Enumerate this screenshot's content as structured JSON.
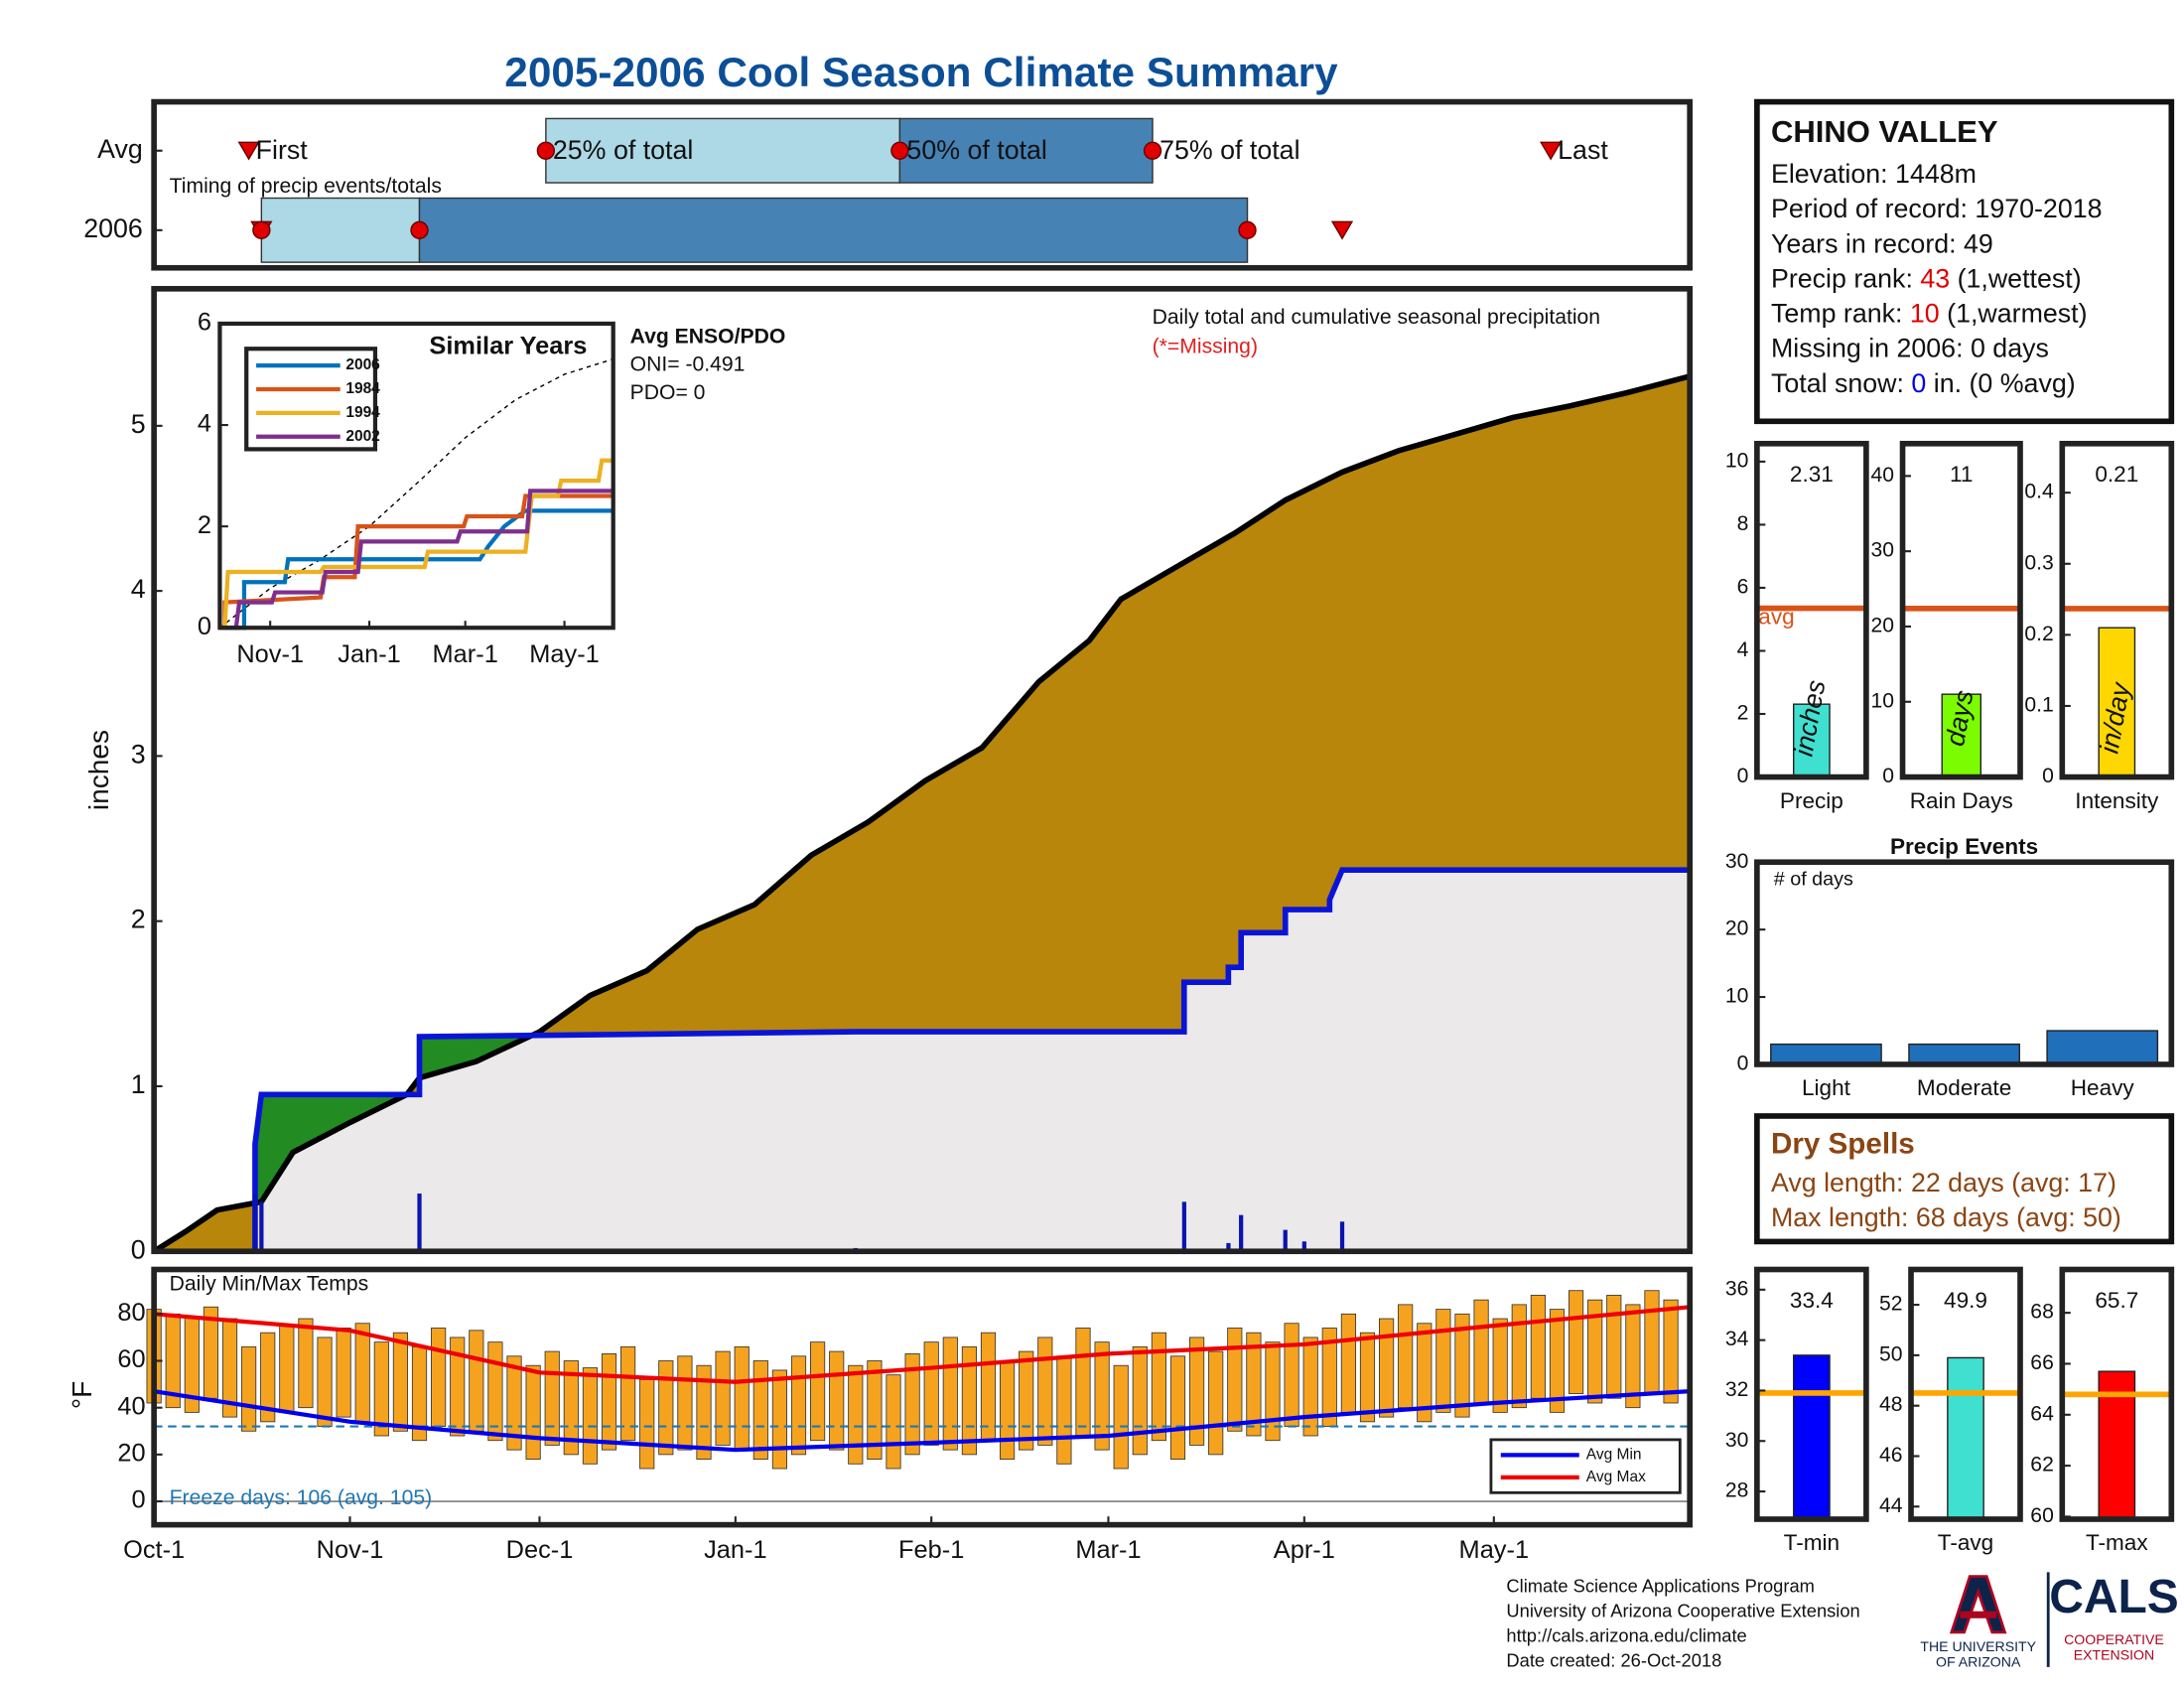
{
  "title": "2005-2006 Cool Season Climate Summary",
  "chart_data": [
    {
      "type": "timeline",
      "annotation": "Timing of precip events/totals",
      "categories": [
        "Avg",
        "2006"
      ],
      "labels": [
        "First",
        "25% of total",
        "50% of total",
        "75% of total",
        "Last"
      ],
      "first": [
        15,
        17
      ],
      "q25": [
        62,
        17
      ],
      "q50": [
        118,
        42
      ],
      "q75": [
        158,
        173
      ],
      "last": [
        221,
        188
      ],
      "xlim": [
        0,
        243
      ],
      "colors": {
        "early": "#add8e6",
        "late": "#4682b4",
        "marker": "#e00000"
      }
    },
    {
      "type": "area",
      "ylabel": "inches",
      "annotation": "Daily total and cumulative seasonal precipitation",
      "note": "(*=Missing)",
      "note_color": "#e02020",
      "xlim": [
        0,
        243
      ],
      "ylim": [
        0,
        5.83
      ],
      "yticks": [
        0,
        1,
        2,
        3,
        4,
        5
      ],
      "average": {
        "color": "#000000",
        "x": [
          0,
          5,
          10,
          17,
          22,
          31,
          40,
          42,
          51,
          61,
          69,
          78,
          86,
          95,
          104,
          113,
          122,
          131,
          140,
          148,
          153,
          162,
          171,
          179,
          188,
          197,
          206,
          215,
          224,
          233,
          243
        ],
        "values": [
          0,
          0.12,
          0.25,
          0.3,
          0.6,
          0.78,
          0.95,
          1.05,
          1.15,
          1.33,
          1.55,
          1.7,
          1.95,
          2.1,
          2.4,
          2.6,
          2.85,
          3.05,
          3.45,
          3.7,
          3.95,
          4.15,
          4.35,
          4.55,
          4.72,
          4.85,
          4.95,
          5.05,
          5.12,
          5.2,
          5.3
        ]
      },
      "observed": {
        "color": "#0a14d8",
        "x": [
          0,
          16,
          16,
          17,
          42,
          42,
          111,
          163,
          163,
          170,
          170,
          172,
          172,
          179,
          179,
          186,
          186,
          188,
          243
        ],
        "values": [
          0,
          0,
          0.65,
          0.95,
          0.95,
          1.3,
          1.33,
          1.33,
          1.63,
          1.63,
          1.72,
          1.72,
          1.93,
          1.93,
          2.07,
          2.07,
          2.13,
          2.31,
          2.31
        ]
      },
      "daily": {
        "color": "#0a14b0",
        "x": [
          16,
          17,
          42,
          111,
          163,
          170,
          172,
          179,
          182,
          188
        ],
        "values": [
          0.35,
          0.3,
          0.35,
          0.02,
          0.3,
          0.05,
          0.22,
          0.13,
          0.06,
          0.18
        ]
      },
      "fills": {
        "below": "#ebe9e9",
        "deficit": "#b8860b",
        "surplus": "#228b22"
      }
    },
    {
      "type": "line",
      "title": "Similar Years",
      "annotations": [
        "Avg ENSO/PDO",
        "ONI= -0.491",
        "PDO= 0"
      ],
      "xlim": [
        0,
        242
      ],
      "ylim": [
        0,
        6
      ],
      "yticks": [
        0,
        2,
        4,
        6
      ],
      "xticks": [
        {
          "value": 31,
          "label": "Nov-1"
        },
        {
          "value": 92,
          "label": "Jan-1"
        },
        {
          "value": 151,
          "label": "Mar-1"
        },
        {
          "value": 212,
          "label": "May-1"
        }
      ],
      "series": [
        {
          "name": "2006",
          "color": "#0072bd",
          "x": [
            0,
            15,
            15,
            40,
            42,
            160,
            165,
            175,
            188,
            242
          ],
          "values": [
            0,
            0,
            0.9,
            0.9,
            1.35,
            1.35,
            1.6,
            2.0,
            2.31,
            2.31
          ]
        },
        {
          "name": "1984",
          "color": "#d95319",
          "x": [
            0,
            3,
            3,
            62,
            64,
            83,
            85,
            150,
            152,
            186,
            188,
            242
          ],
          "values": [
            0,
            0,
            0.5,
            0.6,
            1.0,
            1.0,
            2.0,
            2.0,
            2.2,
            2.2,
            2.6,
            2.6
          ]
        },
        {
          "name": "1994",
          "color": "#edb120",
          "x": [
            0,
            3,
            5,
            62,
            64,
            126,
            128,
            188,
            192,
            208,
            210,
            233,
            235,
            242
          ],
          "values": [
            0,
            0,
            1.1,
            1.1,
            1.2,
            1.2,
            1.5,
            1.5,
            2.6,
            2.6,
            2.9,
            2.9,
            3.3,
            3.3
          ]
        },
        {
          "name": "2002",
          "color": "#7e2f8e",
          "x": [
            0,
            10,
            12,
            32,
            34,
            63,
            65,
            85,
            87,
            146,
            148,
            189,
            191,
            242
          ],
          "values": [
            0,
            0,
            0.5,
            0.5,
            0.7,
            0.7,
            1.1,
            1.1,
            1.7,
            1.7,
            1.9,
            1.9,
            2.7,
            2.7
          ]
        }
      ],
      "average": {
        "color": "#000000",
        "dashed": true,
        "x": [
          0,
          31,
          61,
          92,
          123,
          151,
          182,
          212,
          242
        ],
        "values": [
          0,
          0.78,
          1.33,
          2.0,
          2.9,
          3.75,
          4.5,
          5.0,
          5.3
        ]
      }
    },
    {
      "type": "range_bar",
      "title": "Daily Min/Max Temps",
      "ylabel": "°F",
      "xlim": [
        0,
        243
      ],
      "ylim": [
        -10,
        99
      ],
      "yticks": [
        0,
        20,
        40,
        60,
        80
      ],
      "xticks": [
        {
          "value": 0,
          "label": "Oct-1"
        },
        {
          "value": 31,
          "label": "Nov-1"
        },
        {
          "value": 61,
          "label": "Dec-1"
        },
        {
          "value": 92,
          "label": "Jan-1"
        },
        {
          "value": 123,
          "label": "Feb-1"
        },
        {
          "value": 151,
          "label": "Mar-1"
        },
        {
          "value": 182,
          "label": "Apr-1"
        },
        {
          "value": 212,
          "label": "May-1"
        }
      ],
      "bar_color": "#f5a31f",
      "x": [
        0,
        3,
        6,
        9,
        12,
        15,
        18,
        21,
        24,
        27,
        30,
        33,
        36,
        39,
        42,
        45,
        48,
        51,
        54,
        57,
        60,
        63,
        66,
        69,
        72,
        75,
        78,
        81,
        84,
        87,
        90,
        93,
        96,
        99,
        102,
        105,
        108,
        111,
        114,
        117,
        120,
        123,
        126,
        129,
        132,
        135,
        138,
        141,
        144,
        147,
        150,
        153,
        156,
        159,
        162,
        165,
        168,
        171,
        174,
        177,
        180,
        183,
        186,
        189,
        192,
        195,
        198,
        201,
        204,
        207,
        210,
        213,
        216,
        219,
        222,
        225,
        228,
        231,
        234,
        237,
        240
      ],
      "max": [
        82,
        80,
        79,
        83,
        78,
        66,
        72,
        75,
        78,
        70,
        74,
        76,
        68,
        72,
        66,
        74,
        70,
        73,
        68,
        62,
        58,
        64,
        60,
        57,
        63,
        66,
        52,
        60,
        62,
        58,
        64,
        66,
        60,
        56,
        62,
        68,
        64,
        58,
        60,
        54,
        63,
        68,
        70,
        66,
        72,
        60,
        64,
        70,
        62,
        74,
        68,
        58,
        66,
        72,
        62,
        70,
        64,
        74,
        72,
        68,
        76,
        70,
        74,
        80,
        72,
        78,
        84,
        76,
        82,
        80,
        86,
        78,
        84,
        88,
        82,
        90,
        86,
        88,
        84,
        90,
        86
      ],
      "min": [
        42,
        40,
        38,
        44,
        36,
        30,
        34,
        38,
        40,
        32,
        36,
        34,
        28,
        30,
        26,
        32,
        28,
        30,
        26,
        22,
        18,
        24,
        20,
        16,
        22,
        26,
        14,
        20,
        22,
        18,
        24,
        22,
        18,
        14,
        20,
        26,
        22,
        16,
        18,
        14,
        20,
        24,
        22,
        20,
        26,
        18,
        22,
        24,
        16,
        28,
        22,
        14,
        20,
        26,
        18,
        24,
        20,
        30,
        28,
        26,
        32,
        28,
        32,
        38,
        34,
        36,
        40,
        34,
        38,
        36,
        42,
        38,
        40,
        44,
        38,
        46,
        42,
        44,
        40,
        46,
        42
      ],
      "avg_min": {
        "name": "Avg Min",
        "color": "#0000ee",
        "x": [
          0,
          31,
          61,
          92,
          123,
          151,
          182,
          212,
          243
        ],
        "values": [
          47,
          34,
          27,
          22,
          25,
          28,
          36,
          42,
          47
        ]
      },
      "avg_max": {
        "name": "Avg Max",
        "color": "#ee0000",
        "x": [
          0,
          31,
          61,
          92,
          123,
          151,
          182,
          212,
          243
        ],
        "values": [
          80,
          73,
          55,
          51,
          57,
          63,
          67,
          75,
          83
        ]
      },
      "freeze": {
        "value": 32,
        "label": "Freeze days: 106 (avg. 105)",
        "color": "#1f77b4"
      }
    },
    {
      "type": "bar",
      "categories": [
        "Precip"
      ],
      "values": [
        2.31
      ],
      "unit": "inches",
      "average": 5.35,
      "average_label": "avg",
      "ylim": [
        0,
        10.57
      ],
      "yticks": [
        0,
        2,
        4,
        6,
        8,
        10
      ],
      "color": "#40e0d0",
      "average_color": "#d95319"
    },
    {
      "type": "bar",
      "categories": [
        "Rain Days"
      ],
      "values": [
        11
      ],
      "unit": "days",
      "average": 22.4,
      "ylim": [
        0,
        44.3
      ],
      "yticks": [
        0,
        10,
        20,
        30,
        40
      ],
      "color": "#7cfc00",
      "average_color": "#d95319"
    },
    {
      "type": "bar",
      "categories": [
        "Intensity"
      ],
      "values": [
        0.21
      ],
      "unit": "in/day",
      "average": 0.237,
      "ylim": [
        0,
        0.469
      ],
      "yticks": [
        0,
        0.1,
        0.2,
        0.3,
        0.4
      ],
      "color": "#ffd700",
      "average_color": "#d95319"
    },
    {
      "type": "bar",
      "title": "Precip Events",
      "annotation": "# of days",
      "categories": [
        "Light",
        "Moderate",
        "Heavy"
      ],
      "values": [
        3,
        3,
        5
      ],
      "ylim": [
        0,
        30
      ],
      "yticks": [
        0,
        10,
        20,
        30
      ],
      "color": "#1f6fba"
    },
    {
      "type": "bar",
      "categories": [
        "T-min"
      ],
      "values": [
        33.4
      ],
      "average": 31.9,
      "ylim": [
        26.9,
        36.8
      ],
      "yticks": [
        28,
        30,
        32,
        34,
        36
      ],
      "color": "#0000ff",
      "average_color": "#ffa500"
    },
    {
      "type": "bar",
      "categories": [
        "T-avg"
      ],
      "values": [
        49.9
      ],
      "average": 48.5,
      "ylim": [
        43.5,
        53.4
      ],
      "yticks": [
        44,
        46,
        48,
        50,
        52
      ],
      "color": "#40e0d0",
      "average_color": "#ffa500"
    },
    {
      "type": "bar",
      "categories": [
        "T-max"
      ],
      "values": [
        65.7
      ],
      "average": 64.8,
      "ylim": [
        59.9,
        69.7
      ],
      "yticks": [
        60,
        62,
        64,
        66,
        68
      ],
      "color": "#ff0000",
      "average_color": "#ffa500"
    }
  ],
  "info": {
    "title": "CHINO VALLEY",
    "lines": [
      [
        {
          "text": "Elevation: 1448m"
        }
      ],
      [
        {
          "text": "Period of record: 1970-2018"
        }
      ],
      [
        {
          "text": "Years in record: 49"
        }
      ],
      [
        {
          "text": "Precip rank: "
        },
        {
          "text": "43",
          "color": "#e00000"
        },
        {
          "text": " (1,wettest)"
        }
      ],
      [
        {
          "text": "Temp rank: "
        },
        {
          "text": "10",
          "color": "#e00000"
        },
        {
          "text": " (1,warmest)"
        }
      ],
      [
        {
          "text": "Missing in 2006: 0 days"
        }
      ],
      [
        {
          "text": "Total snow: "
        },
        {
          "text": "0",
          "color": "#0000ee"
        },
        {
          "text": " in. (0 %avg)"
        }
      ]
    ]
  },
  "dry_spells": {
    "title": "Dry Spells",
    "color": "#8b4513",
    "lines": [
      "Avg length: 22 days (avg: 17)",
      "Max length: 68 days (avg: 50)"
    ]
  },
  "footer": {
    "lines": [
      "Climate Science Applications Program",
      "University of Arizona Cooperative Extension",
      "http://cals.arizona.edu/climate",
      "Date created: 26-Oct-2018"
    ],
    "university": [
      "THE UNIVERSITY",
      "OF ARIZONA"
    ],
    "cals": "CALS",
    "extension": [
      "COOPERATIVE",
      "EXTENSION"
    ]
  }
}
